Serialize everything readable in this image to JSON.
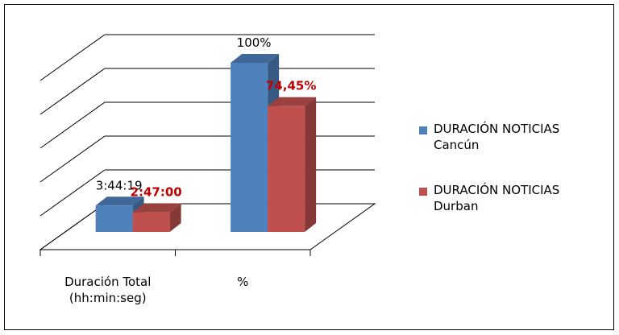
{
  "chart_data": {
    "type": "bar3d",
    "categories": [
      "Duración Total\n(hh:min:seg)",
      "%"
    ],
    "series": [
      {
        "name": "DURACIÓN NOTICIAS\nCancún",
        "color": "#4f81bd",
        "values": [
          0.155775,
          1
        ],
        "value_labels": [
          "3:44:19",
          "100%"
        ],
        "label_color": "#000000",
        "label_weight": "normal"
      },
      {
        "name": "DURACIÓN NOTICIAS\nDurban",
        "color": "#c0504d",
        "values": [
          0.115972,
          0.7445
        ],
        "value_labels": [
          "2:47:00",
          "74,45%"
        ],
        "label_color": "#c00000",
        "label_weight": "bold"
      }
    ],
    "ylim": [
      0,
      1
    ],
    "yticks": [
      0,
      0.2,
      0.4,
      0.6,
      0.8,
      1
    ],
    "grid": true,
    "legend": "right"
  }
}
